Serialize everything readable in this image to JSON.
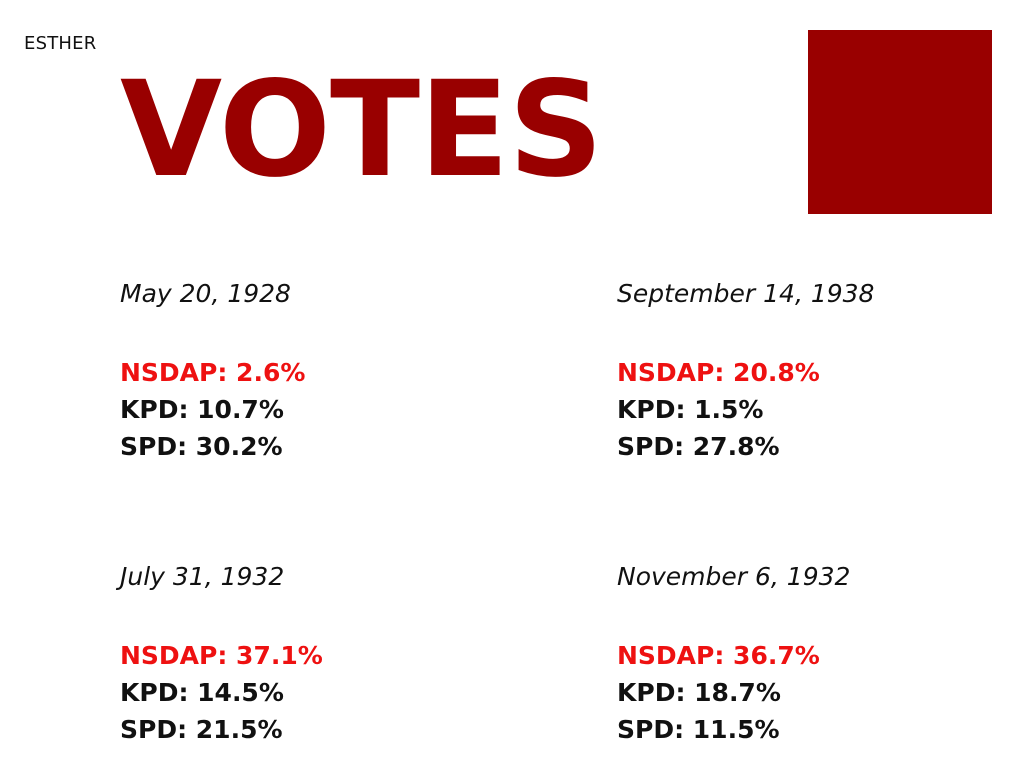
{
  "author": "ESTHER",
  "title": "VOTES",
  "colors": {
    "title": "#990000",
    "accent_square": "#990000",
    "highlight": "#ee1111",
    "text": "#111111"
  },
  "elections": [
    {
      "date": "May 20, 1928",
      "results": [
        {
          "party": "NSDAP",
          "percent": "2.6%",
          "text": "NSDAP: 2.6%",
          "highlight": true
        },
        {
          "party": "KPD",
          "percent": "10.7%",
          "text": "KPD: 10.7%",
          "highlight": false
        },
        {
          "party": "SPD",
          "percent": "30.2%",
          "text": "SPD: 30.2%",
          "highlight": false
        }
      ]
    },
    {
      "date": "September 14, 1938",
      "results": [
        {
          "party": "NSDAP",
          "percent": "20.8%",
          "text": "NSDAP: 20.8%",
          "highlight": true
        },
        {
          "party": "KPD",
          "percent": "1.5%",
          "text": "KPD: 1.5%",
          "highlight": false
        },
        {
          "party": "SPD",
          "percent": "27.8%",
          "text": "SPD: 27.8%",
          "highlight": false
        }
      ]
    },
    {
      "date": "July 31, 1932",
      "results": [
        {
          "party": "NSDAP",
          "percent": "37.1%",
          "text": "NSDAP: 37.1%",
          "highlight": true
        },
        {
          "party": "KPD",
          "percent": "14.5%",
          "text": "KPD: 14.5%",
          "highlight": false
        },
        {
          "party": "SPD",
          "percent": "21.5%",
          "text": "SPD: 21.5%",
          "highlight": false
        }
      ]
    },
    {
      "date": "November 6, 1932",
      "results": [
        {
          "party": "NSDAP",
          "percent": "36.7%",
          "text": "NSDAP: 36.7%",
          "highlight": true
        },
        {
          "party": "KPD",
          "percent": "18.7%",
          "text": "KPD: 18.7%",
          "highlight": false
        },
        {
          "party": "SPD",
          "percent": "11.5%",
          "text": "SPD: 11.5%",
          "highlight": false
        }
      ]
    }
  ]
}
